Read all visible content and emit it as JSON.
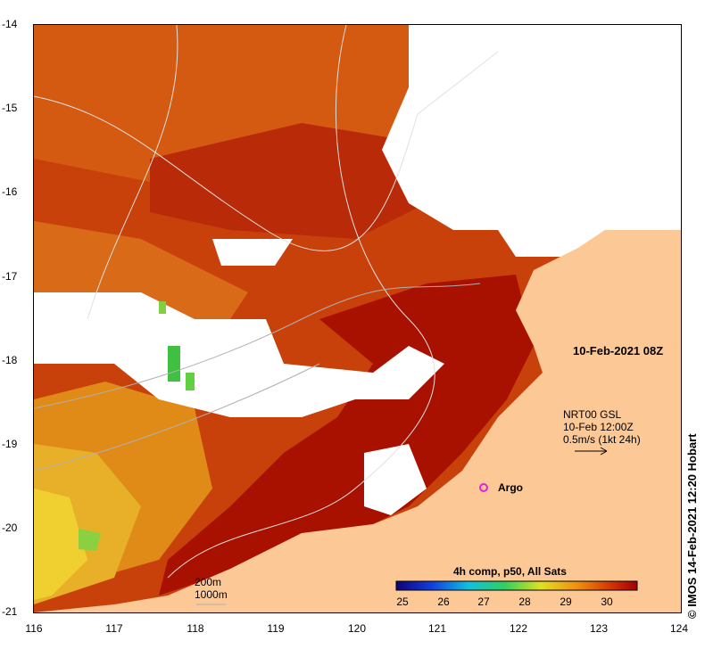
{
  "title": "10-Feb-2021 08Z",
  "product": {
    "line1": "NRT00 GSL",
    "line2": "10-Feb 12:00Z",
    "line3": "0.5m/s (1kt 24h)"
  },
  "argo_label": "Argo",
  "depth_legend": {
    "d200": "200m",
    "d1000": "1000m"
  },
  "colorbar": {
    "title": "4h comp, p50, All Sats",
    "ticks": [
      "25",
      "26",
      "27",
      "28",
      "29",
      "30"
    ]
  },
  "credit": "© IMOS 14-Feb-2021 12:20 Hobart",
  "axes": {
    "lat_labels": [
      "-14",
      "-15",
      "-16",
      "-17",
      "-18",
      "-19",
      "-20",
      "-21"
    ],
    "lon_labels": [
      "116",
      "117",
      "118",
      "119",
      "120",
      "121",
      "122",
      "123",
      "124"
    ]
  },
  "colors": {
    "land": "#fcc896",
    "cloud": "#ffffff",
    "sst_hot": "#b01000",
    "sst_warm": "#d85a10",
    "sst_mid": "#e8a020",
    "sst_cool": "#f0d030",
    "sst_green": "#60d040",
    "argo": "#e020e0"
  }
}
